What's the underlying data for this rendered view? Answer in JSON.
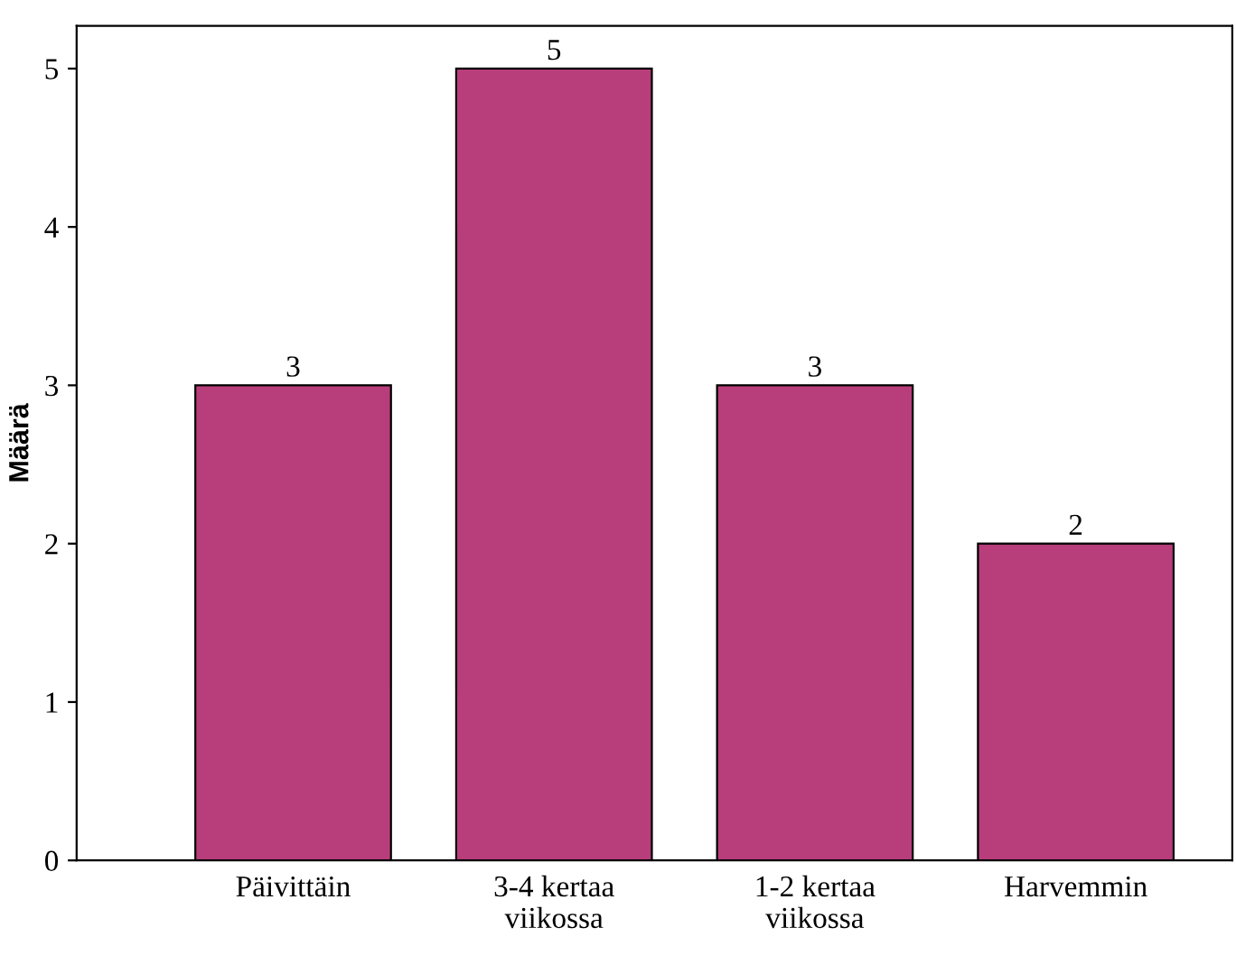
{
  "chart_data": {
    "type": "bar",
    "ylabel": "Määrä",
    "categories": [
      "Päivittäin",
      "3-4 kertaa\nviikossa",
      "1-2 kertaa\nviikossa",
      "Harvemmin"
    ],
    "values": [
      3,
      5,
      3,
      2
    ],
    "color": "#b83e7b",
    "ylim": [
      0,
      5.27
    ],
    "yticks": [
      0,
      1,
      2,
      3,
      4,
      5
    ],
    "grid": false,
    "data_labels": true
  }
}
